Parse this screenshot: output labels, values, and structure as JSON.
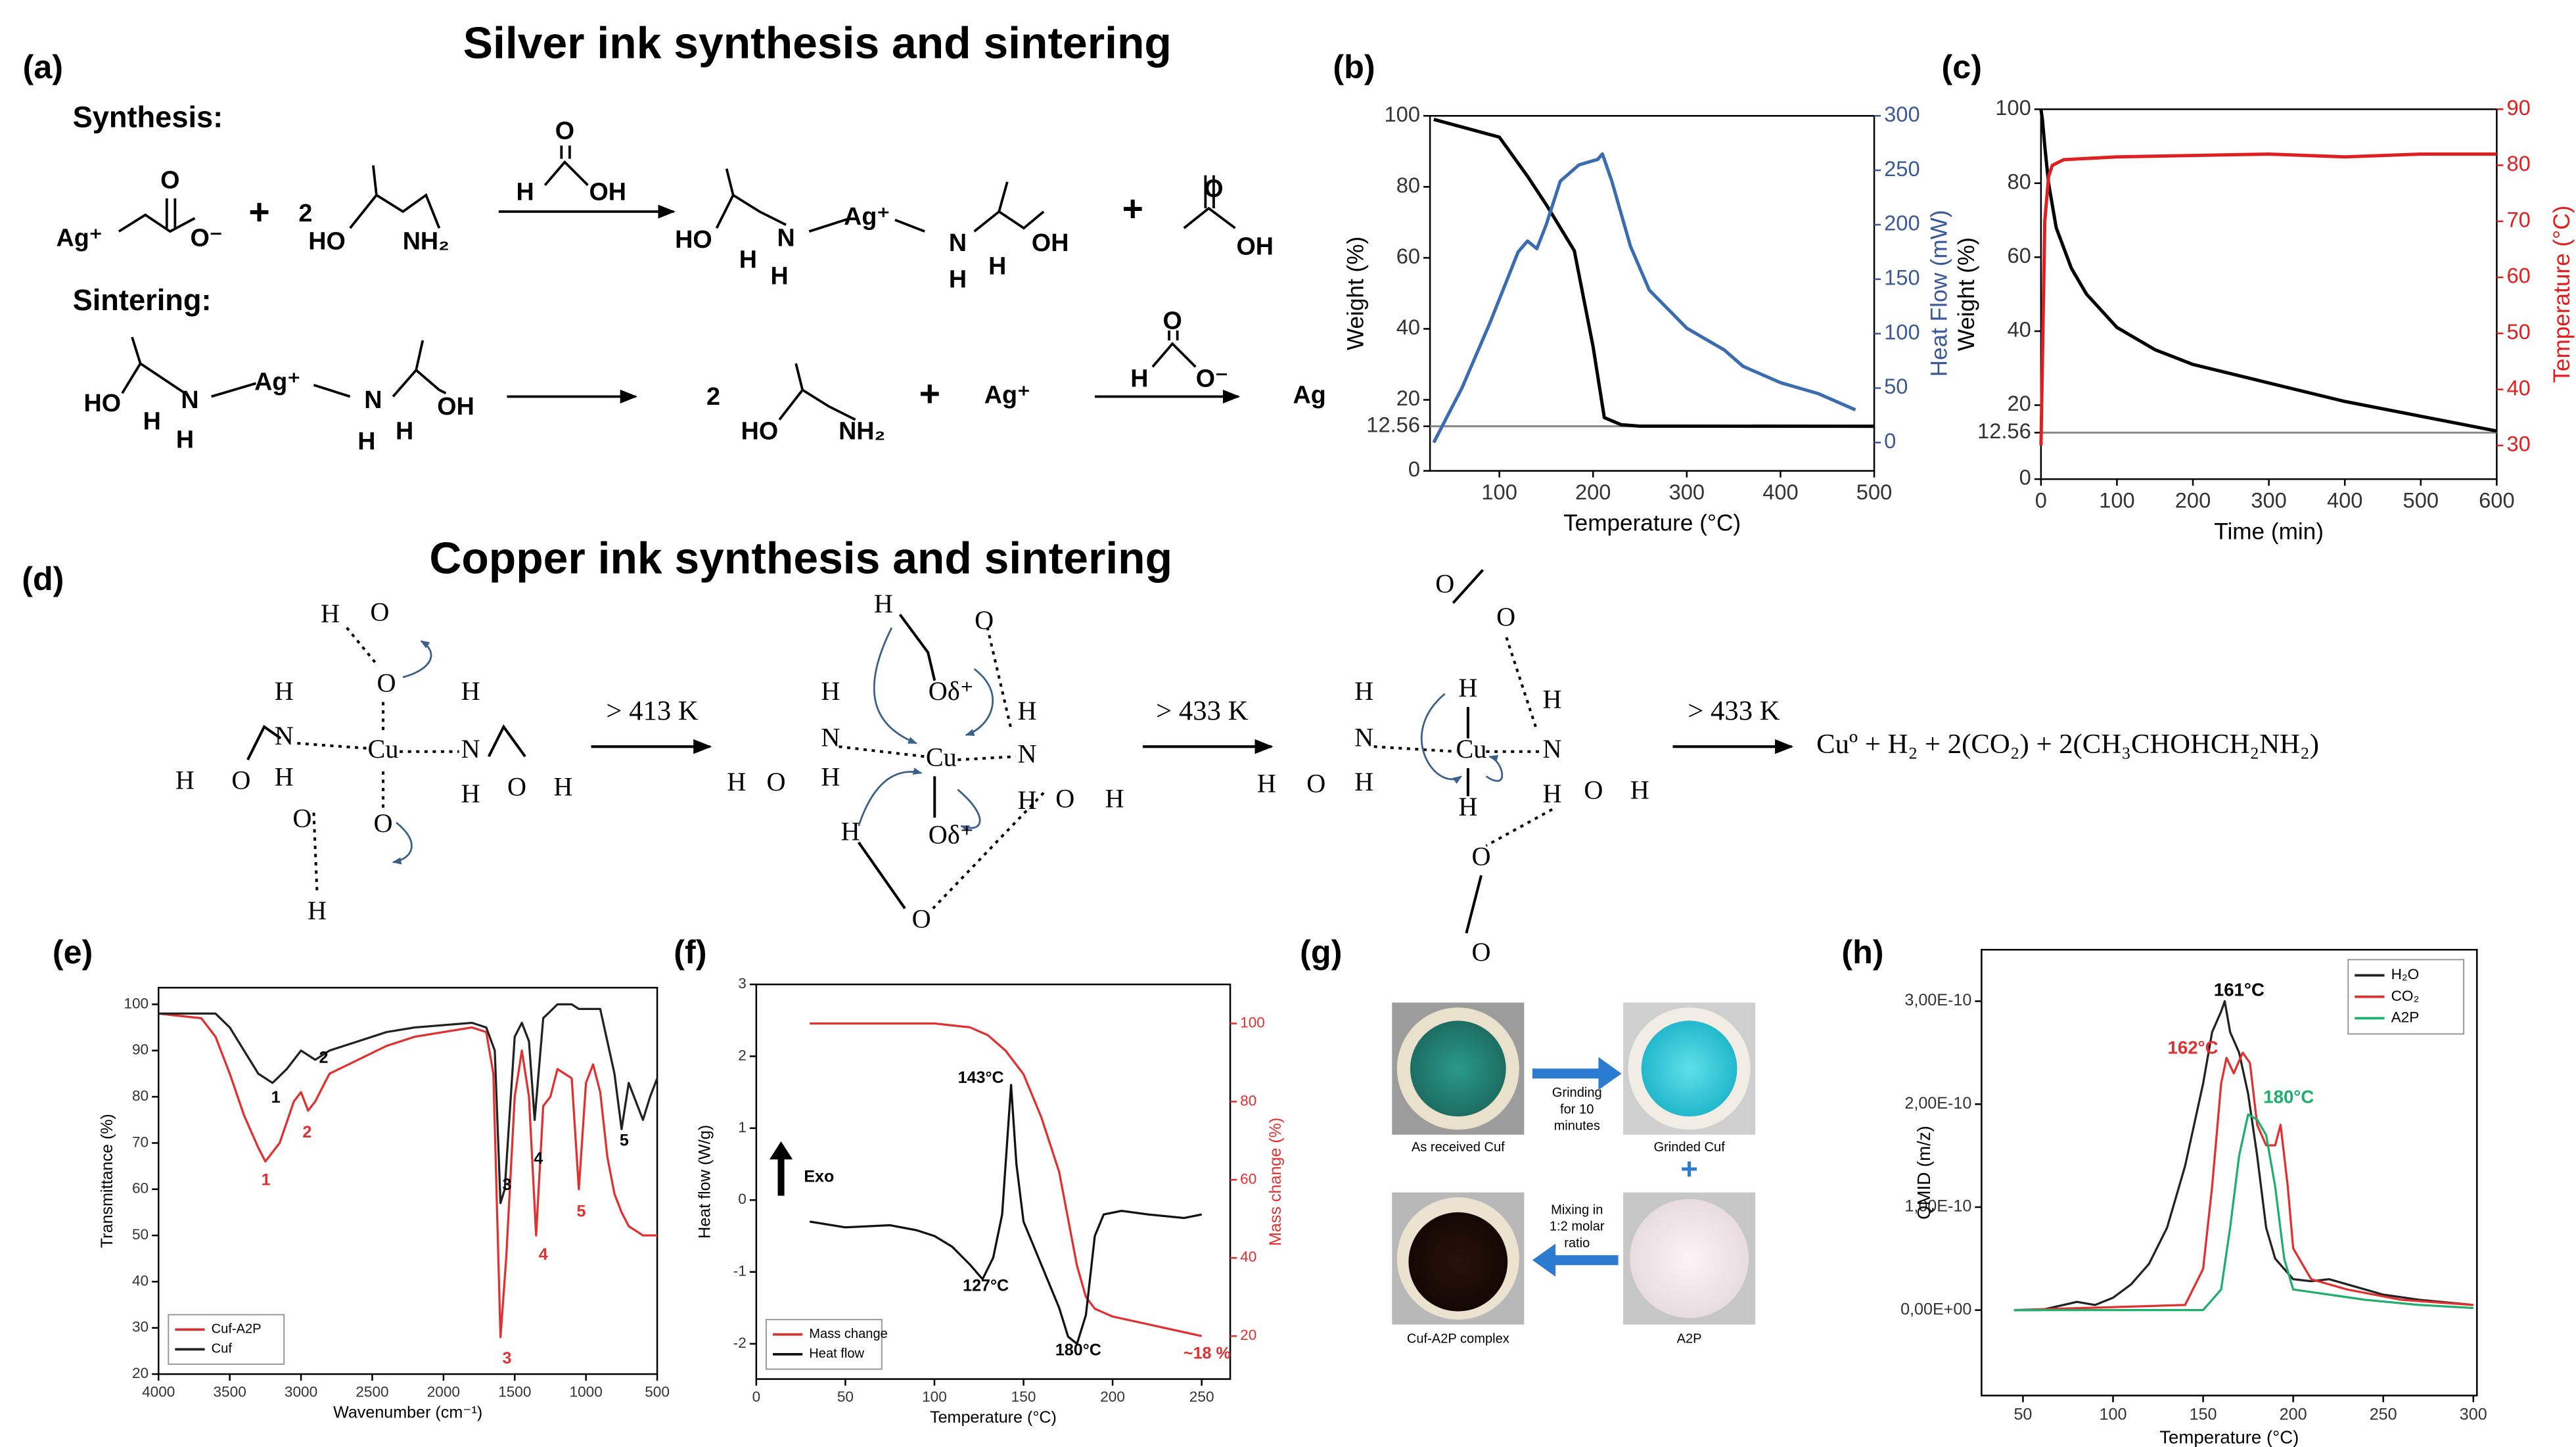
{
  "headings": {
    "silver": "Silver ink synthesis and sintering",
    "copper": "Copper ink synthesis and sintering"
  },
  "panel_labels": [
    "(a)",
    "(b)",
    "(c)",
    "(d)",
    "(e)",
    "(f)",
    "(g)",
    "(h)"
  ],
  "scheme_a": {
    "labels": [
      "Synthesis:",
      "Ag⁺",
      "O",
      "O⁻",
      "+",
      "2",
      "HO",
      "NH₂",
      "O",
      "H",
      "OH",
      "HO",
      "H",
      "N",
      "H",
      "Ag⁺",
      "N",
      "H",
      "H",
      "OH",
      "+",
      "O",
      "OH",
      "Sintering:",
      "HO",
      "H",
      "N",
      "H",
      "Ag⁺",
      "N",
      "H",
      "H",
      "OH",
      "2",
      "HO",
      "NH₂",
      "+",
      "Ag⁺",
      "O",
      "H",
      "O⁻",
      "Ag"
    ]
  },
  "scheme_d": {
    "labels": [
      "H",
      "O",
      "O",
      "H",
      "N",
      "H",
      "H",
      "O",
      "Cu",
      "H",
      "N",
      "H",
      "O",
      "H",
      "O",
      "O",
      "H",
      "H",
      "O",
      "H",
      "N",
      "H",
      "H",
      "O",
      "Oδ⁺",
      "Cu",
      "H",
      "N",
      "H",
      "O",
      "H",
      "Oδ⁺",
      "H",
      "O",
      "O",
      "O",
      "H",
      "N",
      "H",
      "H",
      "O",
      "H",
      "Cu",
      "H",
      "H",
      "N",
      "H",
      "O",
      "H",
      "O",
      "O"
    ],
    "conditions": [
      "> 413 K",
      "> 433 K",
      "> 433 K"
    ],
    "product": "Cuº + H₂ + 2(CO₂) + 2(CH₃CHOHCH₂NH₂)"
  },
  "panel_g": {
    "photo1": "As received Cuf",
    "step1": [
      "Grinding",
      "for 10",
      "minutes"
    ],
    "photo2": "Grinded Cuf",
    "plus": "+",
    "step2": [
      "Mixing in",
      "1:2 molar",
      "ratio"
    ],
    "photo3": "A2P",
    "photo4": "Cuf-A2P complex"
  },
  "chart_data": [
    {
      "type": "line",
      "xlabel": "Temperature (°C)",
      "ylabel": "Weight (%)",
      "y2label": "Heat Flow (mW)",
      "y2color": "#3b5998",
      "xlim": [
        26,
        500
      ],
      "xticks": [
        100,
        200,
        300,
        400,
        500
      ],
      "ylim": [
        0,
        100
      ],
      "yticks": [
        0,
        12.56,
        20,
        40,
        60,
        80,
        100
      ],
      "y2lim": [
        -26,
        300
      ],
      "y2ticks": [
        0,
        50,
        100,
        150,
        200,
        250,
        300
      ],
      "reference_line": 12.56,
      "series": [
        {
          "color": "#000000",
          "x": [
            30,
            100,
            130,
            150,
            180,
            200,
            212,
            230,
            250,
            500
          ],
          "values": [
            99,
            94,
            83,
            75,
            62,
            35,
            15,
            13,
            12.6,
            12.56
          ]
        },
        {
          "color": "#3b6bb0",
          "axis": "y2",
          "x": [
            30,
            60,
            90,
            120,
            130,
            140,
            150,
            165,
            185,
            205,
            210,
            220,
            240,
            260,
            300,
            340,
            360,
            400,
            440,
            480
          ],
          "values": [
            0,
            50,
            110,
            175,
            185,
            178,
            200,
            240,
            255,
            260,
            265,
            240,
            180,
            140,
            105,
            85,
            70,
            55,
            45,
            30
          ]
        }
      ]
    },
    {
      "type": "line",
      "xlabel": "Time (min)",
      "ylabel": "Weight (%)",
      "y2label": "Temperature (°C)",
      "y2color": "#e02020",
      "xlim": [
        0,
        600
      ],
      "xticks": [
        0,
        100,
        200,
        300,
        400,
        500,
        600
      ],
      "ylim": [
        0,
        100
      ],
      "yticks": [
        0,
        12.56,
        20,
        40,
        60,
        80,
        100
      ],
      "y2lim": [
        24,
        90
      ],
      "y2ticks": [
        30,
        40,
        50,
        60,
        70,
        80,
        90
      ],
      "reference_line": 12.56,
      "series": [
        {
          "color": "#000000",
          "x": [
            0,
            2,
            5,
            10,
            20,
            40,
            60,
            100,
            150,
            200,
            300,
            400,
            500,
            600
          ],
          "values": [
            100,
            97,
            90,
            80,
            68,
            57,
            50,
            41,
            35,
            31,
            26,
            21,
            17,
            13
          ]
        },
        {
          "color": "#e02020",
          "axis": "y2",
          "x": [
            0,
            5,
            10,
            15,
            30,
            100,
            300,
            400,
            500,
            600
          ],
          "values": [
            30,
            70,
            78,
            80,
            81,
            81.5,
            82,
            81.5,
            82,
            82
          ]
        }
      ]
    },
    {
      "type": "line",
      "xlabel": "Wavenumber (cm⁻¹)",
      "ylabel": "Transmittance (%)",
      "legend": "lower left",
      "xlim": [
        4000,
        500
      ],
      "xticks": [
        4000,
        3500,
        3000,
        2500,
        2000,
        1500,
        1000,
        500
      ],
      "ylim": [
        20,
        103.6
      ],
      "yticks": [
        20,
        30,
        40,
        50,
        60,
        70,
        80,
        90,
        100
      ],
      "annotations": [
        {
          "text": "1",
          "color": "#000"
        },
        {
          "text": "2",
          "color": "#000"
        },
        {
          "text": "3",
          "color": "#000"
        },
        {
          "text": "4",
          "color": "#000"
        },
        {
          "text": "5",
          "color": "#000"
        },
        {
          "text": "1",
          "color": "#e03030"
        },
        {
          "text": "2",
          "color": "#e03030"
        },
        {
          "text": "3",
          "color": "#e03030"
        },
        {
          "text": "4",
          "color": "#e03030"
        },
        {
          "text": "5",
          "color": "#e03030"
        }
      ],
      "series": [
        {
          "name": "Cuf-A2P",
          "color": "#e03030",
          "x": [
            4000,
            3700,
            3600,
            3500,
            3400,
            3300,
            3250,
            3150,
            3050,
            3000,
            2950,
            2900,
            2800,
            2600,
            2400,
            2200,
            2000,
            1800,
            1700,
            1650,
            1600,
            1560,
            1500,
            1450,
            1400,
            1350,
            1300,
            1250,
            1200,
            1100,
            1050,
            1000,
            950,
            900,
            850,
            800,
            750,
            700,
            600,
            500
          ],
          "values": [
            98,
            97,
            93,
            85,
            76,
            69,
            66,
            70,
            79,
            81,
            77,
            79,
            85,
            88,
            91,
            93,
            94,
            95,
            94,
            85,
            28,
            45,
            80,
            90,
            80,
            50,
            78,
            80,
            86,
            84,
            60,
            83,
            87,
            81,
            67,
            59,
            55,
            52,
            50,
            50
          ]
        },
        {
          "name": "Cuf",
          "color": "#222222",
          "x": [
            4000,
            3600,
            3500,
            3400,
            3300,
            3200,
            3100,
            3000,
            2900,
            2800,
            2600,
            2400,
            2200,
            2000,
            1800,
            1700,
            1640,
            1600,
            1570,
            1500,
            1450,
            1400,
            1360,
            1330,
            1300,
            1200,
            1100,
            1050,
            1000,
            900,
            850,
            800,
            750,
            700,
            600,
            550,
            500
          ],
          "values": [
            98,
            98,
            95,
            90,
            85,
            83,
            86,
            90,
            88,
            90,
            92,
            94,
            95,
            95.5,
            96,
            95,
            90,
            57,
            60,
            93,
            96,
            92,
            75,
            86,
            97,
            100,
            100,
            99,
            99,
            99,
            92,
            85,
            73,
            83,
            75,
            80,
            84
          ]
        }
      ]
    },
    {
      "type": "line",
      "xlabel": "Temperature (°C)",
      "ylabel": "Heat flow (W/g)",
      "y2label": "Mass change (%)",
      "y2color": "#e03030",
      "legend": "lower left",
      "xlim": [
        0,
        266
      ],
      "xticks": [
        0,
        50,
        100,
        150,
        200,
        250
      ],
      "ylim": [
        -2.49,
        3
      ],
      "yticks": [
        -2,
        -1,
        0,
        1,
        2,
        3
      ],
      "y2lim": [
        9,
        110
      ],
      "y2ticks": [
        20,
        40,
        60,
        80,
        100
      ],
      "annotations": [
        {
          "text": "143°C",
          "color": "#000"
        },
        {
          "text": "127°C",
          "color": "#000"
        },
        {
          "text": "180°C",
          "color": "#000"
        },
        {
          "text": "~18 %",
          "color": "#e03030"
        },
        {
          "text": "Exo",
          "color": "#000"
        }
      ],
      "series": [
        {
          "name": "Mass change",
          "color": "#e03030",
          "axis": "y2",
          "x": [
            30,
            100,
            120,
            130,
            140,
            150,
            160,
            170,
            175,
            180,
            185,
            190,
            200,
            220,
            240,
            250
          ],
          "values": [
            100,
            100,
            99,
            97,
            93,
            87,
            76,
            62,
            50,
            38,
            30,
            27,
            25,
            23,
            21,
            20
          ]
        },
        {
          "name": "Heat flow",
          "color": "#111111",
          "x": [
            30,
            50,
            75,
            90,
            100,
            110,
            120,
            127,
            133,
            138,
            143,
            146,
            150,
            160,
            170,
            175,
            180,
            185,
            190,
            195,
            205,
            220,
            240,
            250
          ],
          "values": [
            -0.3,
            -0.38,
            -0.35,
            -0.42,
            -0.5,
            -0.65,
            -0.9,
            -1.1,
            -0.8,
            -0.2,
            1.6,
            0.5,
            -0.3,
            -0.9,
            -1.5,
            -1.9,
            -2.0,
            -1.6,
            -0.5,
            -0.2,
            -0.15,
            -0.2,
            -0.25,
            -0.2
          ]
        }
      ]
    },
    {
      "type": "line",
      "xlabel": "Temperature (°C)",
      "ylabel": "QMID (m/z)",
      "legend": "upper right",
      "xlim": [
        27,
        302
      ],
      "xticks": [
        50,
        100,
        150,
        200,
        250,
        300
      ],
      "ylim": [
        -8.3e-11,
        3.5e-10
      ],
      "yticks": [
        {
          "value": 0,
          "label": "0,00E+00"
        },
        {
          "value": 1e-10,
          "label": "1,00E-10"
        },
        {
          "value": 2e-10,
          "label": "2,00E-10"
        },
        {
          "value": 3e-10,
          "label": "3,00E-10"
        }
      ],
      "annotations": [
        {
          "text": "161°C",
          "color": "#000"
        },
        {
          "text": "162°C",
          "color": "#e03030"
        },
        {
          "text": "180°C",
          "color": "#1fae6e"
        }
      ],
      "series": [
        {
          "name": "H₂O",
          "color": "#222222",
          "x": [
            45,
            60,
            80,
            90,
            100,
            110,
            120,
            130,
            140,
            150,
            155,
            160,
            162,
            165,
            170,
            175,
            180,
            185,
            190,
            200,
            210,
            220,
            230,
            250,
            270,
            300
          ],
          "values": [
            0,
            0,
            8e-12,
            5e-12,
            1.2e-11,
            2.5e-11,
            4.5e-11,
            8e-11,
            1.4e-10,
            2.2e-10,
            2.7e-10,
            2.9e-10,
            3e-10,
            2.7e-10,
            2.5e-10,
            2.1e-10,
            1.5e-10,
            8e-11,
            5e-11,
            3e-11,
            2.8e-11,
            3e-11,
            2.5e-11,
            1.5e-11,
            1e-11,
            5e-12
          ]
        },
        {
          "name": "CO₂",
          "color": "#e03030",
          "x": [
            45,
            140,
            150,
            155,
            160,
            163,
            167,
            172,
            176,
            180,
            185,
            190,
            193,
            197,
            200,
            210,
            230,
            260,
            300
          ],
          "values": [
            0,
            5e-12,
            4e-11,
            1.2e-10,
            2.2e-10,
            2.45e-10,
            2.3e-10,
            2.5e-10,
            2.4e-10,
            1.8e-10,
            1.6e-10,
            1.6e-10,
            1.8e-10,
            1.2e-10,
            6e-11,
            3e-11,
            2e-11,
            1e-11,
            5e-12
          ]
        },
        {
          "name": "A2P",
          "color": "#1fae6e",
          "x": [
            45,
            150,
            160,
            165,
            170,
            175,
            180,
            185,
            190,
            195,
            200,
            220,
            240,
            270,
            300
          ],
          "values": [
            0,
            0,
            2e-11,
            8e-11,
            1.5e-10,
            1.9e-10,
            1.85e-10,
            1.7e-10,
            1.2e-10,
            5e-11,
            2e-11,
            1.5e-11,
            1e-11,
            5e-12,
            2e-12
          ]
        }
      ]
    }
  ]
}
